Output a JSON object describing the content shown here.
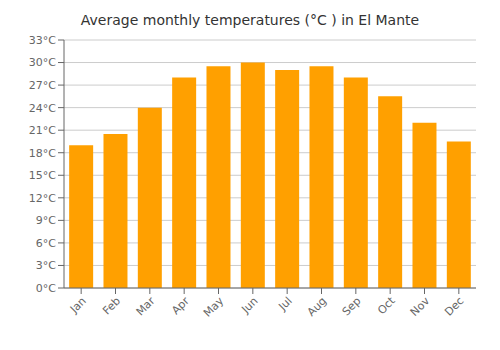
{
  "chart_data": {
    "type": "bar",
    "title": "Average monthly temperatures (°C ) in El Mante",
    "categories": [
      "Jan",
      "Feb",
      "Mar",
      "Apr",
      "May",
      "Jun",
      "Jul",
      "Aug",
      "Sep",
      "Oct",
      "Nov",
      "Dec"
    ],
    "values": [
      19.0,
      20.5,
      24.0,
      28.0,
      29.5,
      30.0,
      29.0,
      29.5,
      28.0,
      25.5,
      22.0,
      19.5
    ],
    "color": "#FFA000",
    "ylim": [
      0,
      33
    ],
    "yticks": [
      {
        "value": 0,
        "label": "0°C"
      },
      {
        "value": 3,
        "label": "3°C"
      },
      {
        "value": 6,
        "label": "6°C"
      },
      {
        "value": 9,
        "label": "9°C"
      },
      {
        "value": 12,
        "label": "12°C"
      },
      {
        "value": 15,
        "label": "15°C"
      },
      {
        "value": 18,
        "label": "18°C"
      },
      {
        "value": 21,
        "label": "21°C"
      },
      {
        "value": 24,
        "label": "24°C"
      },
      {
        "value": 27,
        "label": "27°C"
      },
      {
        "value": 30,
        "label": "30°C"
      },
      {
        "value": 33,
        "label": "33°C"
      }
    ],
    "grid": true
  }
}
